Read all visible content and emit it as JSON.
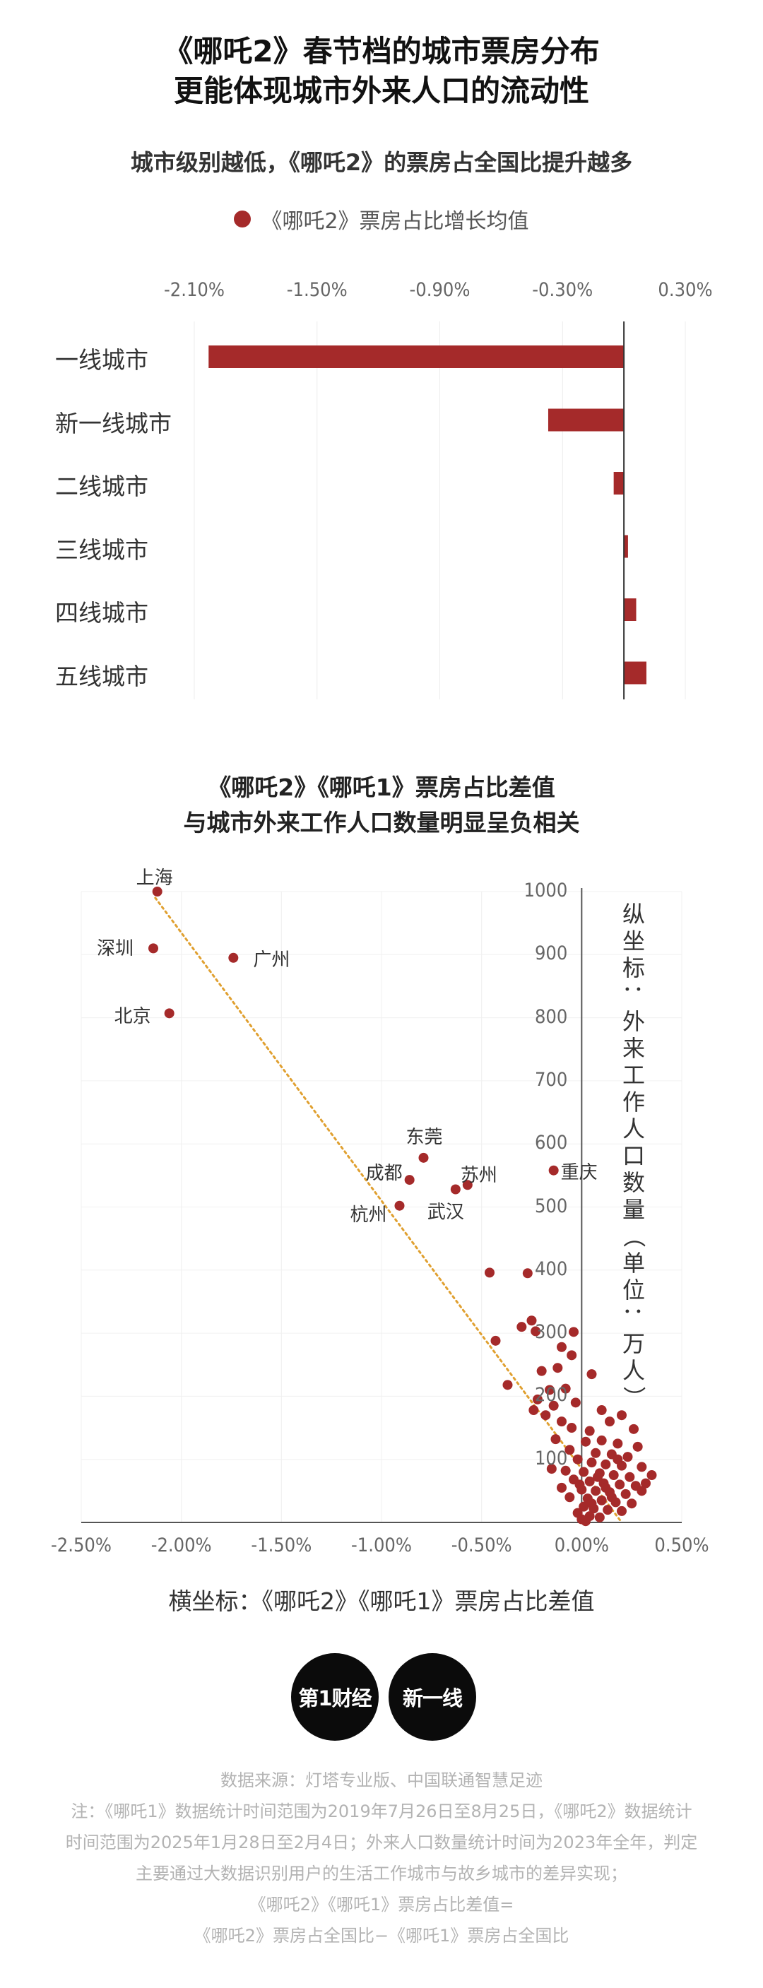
{
  "header": {
    "title_line1": "《哪吒2》春节档的城市票房分布",
    "title_line2": "更能体现城市外来人口的流动性"
  },
  "chart_data": [
    {
      "type": "bar",
      "orientation": "horizontal",
      "title": "城市级别越低，《哪吒2》的票房占全国比提升越多",
      "legend": "《哪吒2》票房占比增长均值",
      "tick_labels": [
        "-2.10%",
        "-1.50%",
        "-0.90%",
        "-0.30%",
        "0.30%"
      ],
      "xlim": [
        -2.1,
        0.3
      ],
      "categories": [
        "一线城市",
        "新一线城市",
        "二线城市",
        "三线城市",
        "四线城市",
        "五线城市"
      ],
      "values": [
        -2.03,
        -0.37,
        -0.05,
        0.02,
        0.06,
        0.11
      ],
      "color": "#a52a2a"
    },
    {
      "type": "scatter",
      "title_line1": "《哪吒2》《哪吒1》票房占比差值",
      "title_line2": "与城市外来工作人口数量明显呈负相关",
      "xlabel": "横坐标：《哪吒2》《哪吒1》票房占比差值",
      "ylabel": "纵坐标：外来工作人口数量（单位：万人）",
      "x_tick_labels": [
        "-2.50%",
        "-2.00%",
        "-1.50%",
        "-1.00%",
        "-0.50%",
        "0.00%",
        "0.50%"
      ],
      "y_tick_labels": [
        "100",
        "200",
        "300",
        "400",
        "500",
        "600",
        "700",
        "800",
        "900",
        "1000"
      ],
      "xlim": [
        -2.5,
        0.5
      ],
      "ylim": [
        0,
        1000
      ],
      "trendline": [
        [
          -2.13,
          990
        ],
        [
          0.2,
          0
        ]
      ],
      "color": "#a52a2a",
      "labeled_points": [
        {
          "name": "上海",
          "x": -2.12,
          "y": 1000
        },
        {
          "name": "深圳",
          "x": -2.14,
          "y": 910
        },
        {
          "name": "广州",
          "x": -1.74,
          "y": 895
        },
        {
          "name": "北京",
          "x": -2.06,
          "y": 807
        },
        {
          "name": "东莞",
          "x": -0.79,
          "y": 578
        },
        {
          "name": "成都",
          "x": -0.86,
          "y": 543
        },
        {
          "name": "苏州",
          "x": -0.57,
          "y": 535
        },
        {
          "name": "武汉",
          "x": -0.63,
          "y": 528
        },
        {
          "name": "重庆",
          "x": -0.14,
          "y": 558
        },
        {
          "name": "杭州",
          "x": -0.91,
          "y": 502
        }
      ],
      "points": [
        {
          "x": -0.46,
          "y": 396
        },
        {
          "x": -0.27,
          "y": 395
        },
        {
          "x": -0.25,
          "y": 320
        },
        {
          "x": -0.3,
          "y": 310
        },
        {
          "x": -0.23,
          "y": 303
        },
        {
          "x": -0.04,
          "y": 302
        },
        {
          "x": -0.43,
          "y": 288
        },
        {
          "x": -0.1,
          "y": 278
        },
        {
          "x": -0.05,
          "y": 265
        },
        {
          "x": -0.2,
          "y": 240
        },
        {
          "x": -0.12,
          "y": 245
        },
        {
          "x": 0.05,
          "y": 235
        },
        {
          "x": -0.37,
          "y": 218
        },
        {
          "x": -0.16,
          "y": 210
        },
        {
          "x": -0.08,
          "y": 212
        },
        {
          "x": -0.22,
          "y": 195
        },
        {
          "x": -0.14,
          "y": 185
        },
        {
          "x": -0.03,
          "y": 190
        },
        {
          "x": -0.18,
          "y": 170
        },
        {
          "x": -0.24,
          "y": 178
        },
        {
          "x": -0.1,
          "y": 160
        },
        {
          "x": 0.1,
          "y": 178
        },
        {
          "x": 0.2,
          "y": 170
        },
        {
          "x": 0.14,
          "y": 160
        },
        {
          "x": -0.05,
          "y": 150
        },
        {
          "x": 0.04,
          "y": 145
        },
        {
          "x": 0.26,
          "y": 148
        },
        {
          "x": -0.13,
          "y": 132
        },
        {
          "x": 0.02,
          "y": 128
        },
        {
          "x": 0.1,
          "y": 130
        },
        {
          "x": 0.18,
          "y": 125
        },
        {
          "x": 0.28,
          "y": 120
        },
        {
          "x": -0.06,
          "y": 115
        },
        {
          "x": 0.07,
          "y": 110
        },
        {
          "x": 0.15,
          "y": 108
        },
        {
          "x": 0.23,
          "y": 104
        },
        {
          "x": -0.02,
          "y": 100
        },
        {
          "x": 0.05,
          "y": 95
        },
        {
          "x": 0.12,
          "y": 92
        },
        {
          "x": 0.2,
          "y": 90
        },
        {
          "x": 0.3,
          "y": 88
        },
        {
          "x": -0.15,
          "y": 85
        },
        {
          "x": -0.08,
          "y": 82
        },
        {
          "x": 0.01,
          "y": 80
        },
        {
          "x": 0.09,
          "y": 78
        },
        {
          "x": 0.16,
          "y": 75
        },
        {
          "x": 0.24,
          "y": 72
        },
        {
          "x": 0.35,
          "y": 75
        },
        {
          "x": 0.32,
          "y": 62
        },
        {
          "x": -0.04,
          "y": 68
        },
        {
          "x": 0.04,
          "y": 65
        },
        {
          "x": 0.11,
          "y": 62
        },
        {
          "x": 0.19,
          "y": 60
        },
        {
          "x": 0.27,
          "y": 58
        },
        {
          "x": -0.1,
          "y": 55
        },
        {
          "x": 0.0,
          "y": 52
        },
        {
          "x": 0.07,
          "y": 50
        },
        {
          "x": 0.14,
          "y": 48
        },
        {
          "x": 0.22,
          "y": 45
        },
        {
          "x": 0.3,
          "y": 50
        },
        {
          "x": -0.06,
          "y": 40
        },
        {
          "x": 0.03,
          "y": 38
        },
        {
          "x": 0.1,
          "y": 35
        },
        {
          "x": 0.17,
          "y": 32
        },
        {
          "x": 0.25,
          "y": 30
        },
        {
          "x": 0.01,
          "y": 25
        },
        {
          "x": 0.06,
          "y": 22
        },
        {
          "x": 0.13,
          "y": 20
        },
        {
          "x": 0.2,
          "y": 18
        },
        {
          "x": -0.02,
          "y": 15
        },
        {
          "x": 0.04,
          "y": 10
        },
        {
          "x": 0.09,
          "y": 8
        },
        {
          "x": 0.0,
          "y": 5
        },
        {
          "x": 0.02,
          "y": 2
        },
        {
          "x": 0.12,
          "y": 55
        },
        {
          "x": 0.08,
          "y": 72
        },
        {
          "x": 0.15,
          "y": 40
        },
        {
          "x": 0.05,
          "y": 30
        },
        {
          "x": -0.01,
          "y": 60
        },
        {
          "x": 0.18,
          "y": 100
        }
      ]
    }
  ],
  "logos": {
    "left": "第1财经",
    "right": "新一线"
  },
  "footer": {
    "source": "数据来源：灯塔专业版、中国联通智慧足迹",
    "note1": "注：《哪吒1》数据统计时间范围为2019年7月26日至8月25日，《哪吒2》数据统计",
    "note2": "时间范围为2025年1月28日至2月4日；外来人口数量统计时间为2023年全年，判定",
    "note3": "主要通过大数据识别用户的生活工作城市与故乡城市的差异实现；",
    "note4": "《哪吒2》《哪吒1》票房占比差值=",
    "note5": "《哪吒2》票房占全国比−《哪吒1》票房占全国比"
  }
}
